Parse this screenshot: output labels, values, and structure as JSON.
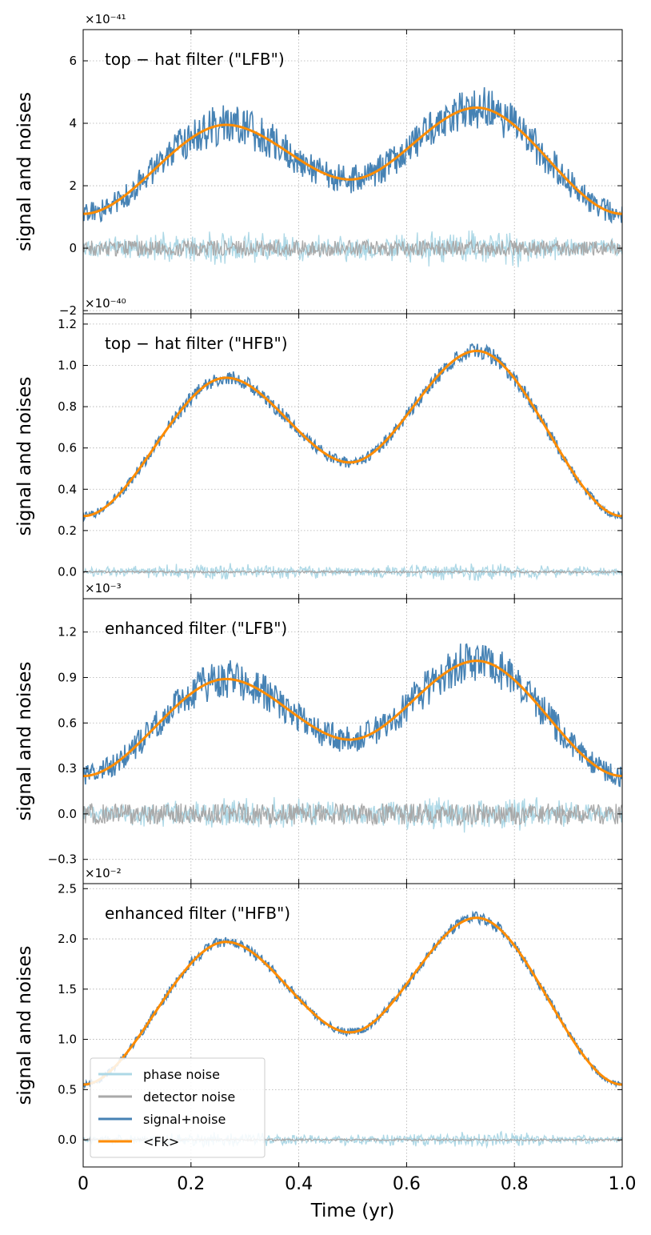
{
  "chart_data": [
    {
      "type": "line",
      "panel_title": "top − hat  filter  (\"LFB\")",
      "ylabel": "signal  and  noises",
      "offset_text": "×10⁻⁴¹",
      "ylim": [
        -2.1,
        7.0
      ],
      "yticks": [
        -2,
        0,
        2,
        4,
        6
      ],
      "ytick_labels": [
        "−2",
        "0",
        "2",
        "4",
        "6"
      ],
      "xlim": [
        0,
        1
      ],
      "grid": true,
      "mean_signal": {
        "name": "<Fk>",
        "x": [
          0,
          0.265,
          0.495,
          0.73,
          1.0
        ],
        "y": [
          1.1,
          3.95,
          2.2,
          4.5,
          1.1
        ]
      },
      "signal_noise_amplitude": 0.7,
      "phase_noise_amplitude": 0.7,
      "detector_noise_amplitude": 0.25
    },
    {
      "type": "line",
      "panel_title": "top − hat  filter  (\"HFB\")",
      "ylabel": "signal  and  noises",
      "offset_text": "×10⁻⁴⁰",
      "ylim": [
        -0.13,
        1.25
      ],
      "yticks": [
        0.0,
        0.2,
        0.4,
        0.6,
        0.8,
        1.0,
        1.2
      ],
      "ytick_labels": [
        "0.0",
        "0.2",
        "0.4",
        "0.6",
        "0.8",
        "1.0",
        "1.2"
      ],
      "xlim": [
        0,
        1
      ],
      "grid": true,
      "mean_signal": {
        "name": "<Fk>",
        "x": [
          0,
          0.265,
          0.495,
          0.73,
          1.0
        ],
        "y": [
          0.27,
          0.94,
          0.53,
          1.07,
          0.27
        ]
      },
      "signal_noise_amplitude": 0.04,
      "phase_noise_amplitude": 0.05,
      "detector_noise_amplitude": 0.005
    },
    {
      "type": "line",
      "panel_title": "enhanced  filter  (\"LFB\")",
      "ylabel": "signal  and  noises",
      "offset_text": "×10⁻³",
      "ylim": [
        -0.46,
        1.42
      ],
      "yticks": [
        -0.3,
        0.0,
        0.3,
        0.6,
        0.9,
        1.2
      ],
      "ytick_labels": [
        "−0.3",
        "0.0",
        "0.3",
        "0.6",
        "0.9",
        "1.2"
      ],
      "xlim": [
        0,
        1
      ],
      "grid": true,
      "mean_signal": {
        "name": "<Fk>",
        "x": [
          0,
          0.265,
          0.495,
          0.73,
          1.0
        ],
        "y": [
          0.25,
          0.89,
          0.49,
          1.01,
          0.25
        ]
      },
      "signal_noise_amplitude": 0.14,
      "phase_noise_amplitude": 0.14,
      "detector_noise_amplitude": 0.07
    },
    {
      "type": "line",
      "panel_title": "enhanced  filter  (\"HFB\")",
      "ylabel": "signal  and  noises",
      "offset_text": "×10⁻²",
      "ylim": [
        -0.27,
        2.55
      ],
      "yticks": [
        0.0,
        0.5,
        1.0,
        1.5,
        2.0,
        2.5
      ],
      "ytick_labels": [
        "0.0",
        "0.5",
        "1.0",
        "1.5",
        "2.0",
        "2.5"
      ],
      "xlim": [
        0,
        1
      ],
      "grid": true,
      "mean_signal": {
        "name": "<Fk>",
        "x": [
          0,
          0.265,
          0.495,
          0.73,
          1.0
        ],
        "y": [
          0.55,
          1.97,
          1.07,
          2.21,
          0.55
        ]
      },
      "signal_noise_amplitude": 0.06,
      "phase_noise_amplitude": 0.09,
      "detector_noise_amplitude": 0.01,
      "legend": {
        "placement": "lower-left",
        "entries": [
          {
            "label": "phase noise",
            "color": "#add8e6"
          },
          {
            "label": "detector noise",
            "color": "#a9a9a9"
          },
          {
            "label": "signal+noise",
            "color": "#4682b4"
          },
          {
            "label": "<Fk>",
            "color": "#ff8c00"
          }
        ]
      }
    }
  ],
  "shared_x_axis": {
    "label": "Time  (yr)",
    "xticks": [
      0,
      0.2,
      0.4,
      0.6,
      0.8,
      1.0
    ],
    "xtick_labels": [
      "0",
      "0.2",
      "0.4",
      "0.6",
      "0.8",
      "1.0"
    ]
  },
  "colors": {
    "phase_noise": "#add8e6",
    "detector_noise": "#a9a9a9",
    "signal_plus_noise": "#4682b4",
    "mean_signal": "#ff8c00",
    "grid": "#b0b0b0"
  }
}
